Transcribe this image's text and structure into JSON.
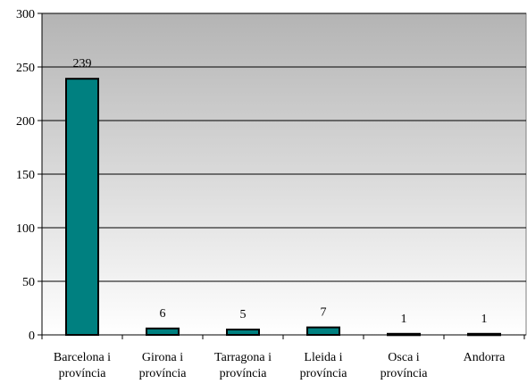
{
  "chart_data": {
    "type": "bar",
    "title": "",
    "xlabel": "",
    "ylabel": "",
    "categories": [
      [
        "Barcelona i",
        "província"
      ],
      [
        "Girona i",
        "província"
      ],
      [
        "Tarragona i",
        "província"
      ],
      [
        "Lleida i",
        "província"
      ],
      [
        "Osca i",
        "província"
      ],
      [
        "Andorra"
      ]
    ],
    "values": [
      239,
      6,
      5,
      7,
      1,
      1
    ],
    "data_labels": [
      "239",
      "6",
      "5",
      "7",
      "1",
      "1"
    ],
    "ylim": [
      0,
      300
    ],
    "yticks": [
      0,
      50,
      100,
      150,
      200,
      250,
      300
    ],
    "ytick_labels": [
      "0",
      "50",
      "100",
      "150",
      "200",
      "250",
      "300"
    ],
    "grid": true,
    "legend": "none",
    "colors": {
      "bar": "#008080",
      "bar_stroke": "#000000",
      "plot_bg_top": "#b4b4b4",
      "plot_bg_bottom": "#ffffff",
      "grid": "#000000"
    }
  }
}
